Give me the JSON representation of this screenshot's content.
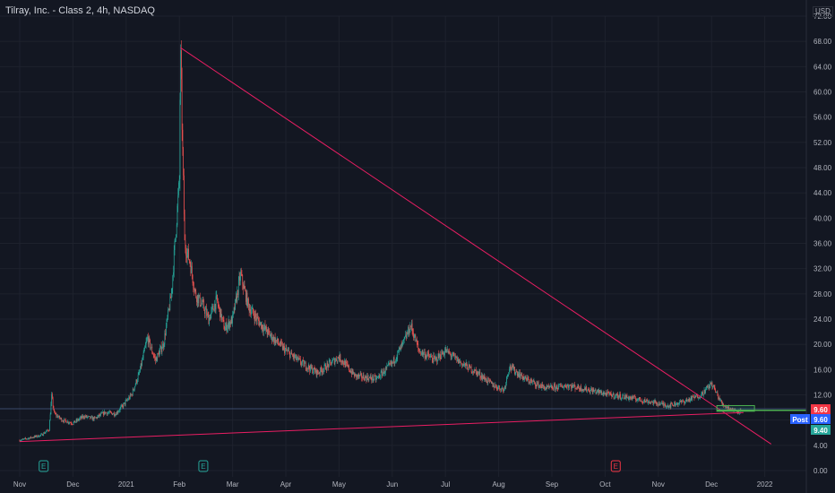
{
  "header": {
    "title": "Tilray, Inc. - Class 2, 4h, NASDAQ",
    "currency": "USD"
  },
  "chart_data": {
    "type": "candlestick",
    "title": "Tilray, Inc. - Class 2, 4h, NASDAQ",
    "ylim": [
      0,
      74
    ],
    "y_ticks": [
      "72.00",
      "68.00",
      "64.00",
      "60.00",
      "56.00",
      "52.00",
      "48.00",
      "44.00",
      "40.00",
      "36.00",
      "32.00",
      "28.00",
      "24.00",
      "20.00",
      "16.00",
      "12.00",
      "8.00",
      "4.00",
      "0.00"
    ],
    "x_ticks": [
      "Nov",
      "Dec",
      "2021",
      "Feb",
      "Mar",
      "Apr",
      "May",
      "Jun",
      "Jul",
      "Aug",
      "Sep",
      "Oct",
      "Nov",
      "Dec",
      "2022"
    ],
    "x_tick_months": [
      0,
      1,
      2,
      3,
      4,
      5,
      6,
      7,
      8,
      9,
      10,
      11,
      12,
      13,
      14
    ],
    "price_path": [
      [
        0.0,
        4.8
      ],
      [
        0.2,
        5.2
      ],
      [
        0.4,
        5.6
      ],
      [
        0.55,
        6.5
      ],
      [
        0.6,
        11.8
      ],
      [
        0.65,
        9.0
      ],
      [
        0.8,
        8.0
      ],
      [
        1.0,
        7.5
      ],
      [
        1.2,
        8.6
      ],
      [
        1.4,
        8.2
      ],
      [
        1.6,
        9.2
      ],
      [
        1.8,
        9.0
      ],
      [
        1.95,
        10.4
      ],
      [
        2.1,
        12.0
      ],
      [
        2.25,
        15.5
      ],
      [
        2.4,
        21.0
      ],
      [
        2.55,
        17.5
      ],
      [
        2.7,
        20.0
      ],
      [
        2.85,
        28.0
      ],
      [
        2.95,
        40.0
      ],
      [
        3.0,
        46.0
      ],
      [
        3.02,
        67.0
      ],
      [
        3.05,
        55.0
      ],
      [
        3.1,
        36.0
      ],
      [
        3.2,
        33.0
      ],
      [
        3.3,
        28.0
      ],
      [
        3.45,
        26.0
      ],
      [
        3.55,
        24.0
      ],
      [
        3.7,
        27.0
      ],
      [
        3.85,
        22.5
      ],
      [
        4.0,
        24.0
      ],
      [
        4.15,
        31.0
      ],
      [
        4.3,
        26.0
      ],
      [
        4.5,
        23.5
      ],
      [
        4.7,
        21.5
      ],
      [
        5.0,
        19.0
      ],
      [
        5.3,
        17.0
      ],
      [
        5.6,
        15.5
      ],
      [
        6.0,
        18.0
      ],
      [
        6.3,
        15.0
      ],
      [
        6.7,
        14.5
      ],
      [
        7.0,
        17.0
      ],
      [
        7.2,
        20.0
      ],
      [
        7.35,
        23.0
      ],
      [
        7.5,
        19.0
      ],
      [
        7.8,
        17.5
      ],
      [
        8.0,
        19.0
      ],
      [
        8.3,
        17.0
      ],
      [
        8.6,
        15.5
      ],
      [
        8.9,
        13.5
      ],
      [
        9.1,
        12.8
      ],
      [
        9.2,
        16.5
      ],
      [
        9.5,
        14.5
      ],
      [
        9.9,
        13.0
      ],
      [
        10.3,
        13.5
      ],
      [
        10.7,
        12.8
      ],
      [
        11.1,
        12.0
      ],
      [
        11.5,
        11.5
      ],
      [
        11.9,
        10.8
      ],
      [
        12.2,
        10.3
      ],
      [
        12.5,
        11.0
      ],
      [
        12.8,
        12.0
      ],
      [
        13.0,
        13.8
      ],
      [
        13.2,
        10.5
      ],
      [
        13.4,
        9.6
      ],
      [
        13.55,
        9.4
      ]
    ],
    "trendlines": [
      {
        "name": "descending",
        "from": [
          3.02,
          67.0
        ],
        "to": [
          14.12,
          4.2
        ],
        "color": "#e91e63"
      },
      {
        "name": "ascending",
        "from": [
          0.0,
          4.6
        ],
        "to": [
          13.6,
          9.2
        ],
        "color": "#e91e63"
      }
    ],
    "reference_line": {
      "value": 9.8
    },
    "price_labels": [
      {
        "value": "9.60",
        "color": "#f23645"
      },
      {
        "value": "9.60",
        "color": "#2962ff",
        "label": "Post"
      },
      {
        "value": "9.40",
        "color": "#26a69a"
      }
    ],
    "events": [
      {
        "label": "E",
        "month": 0.45,
        "color": "#26a69a"
      },
      {
        "label": "E",
        "month": 3.45,
        "color": "#26a69a"
      },
      {
        "label": "E",
        "month": 11.2,
        "color": "#f23645"
      }
    ]
  },
  "colors": {
    "up": "#26a69a",
    "down": "#ef5350",
    "background": "#131722",
    "grid": "#1e222d"
  }
}
